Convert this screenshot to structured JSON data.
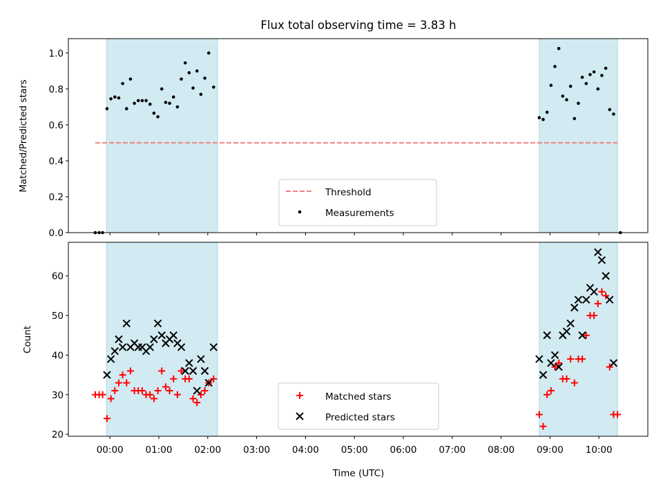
{
  "chart_data": {
    "type": "scatter",
    "title": "Flux total observing time = 3.83 h",
    "xlabel": "Time (UTC)",
    "x_unit": "hours since 00:00 UTC",
    "xlim": [
      -0.85,
      11.0
    ],
    "x_ticks": [
      {
        "value": 0,
        "label": "00:00"
      },
      {
        "value": 1,
        "label": "01:00"
      },
      {
        "value": 2,
        "label": "02:00"
      },
      {
        "value": 3,
        "label": "03:00"
      },
      {
        "value": 4,
        "label": "04:00"
      },
      {
        "value": 5,
        "label": "05:00"
      },
      {
        "value": 6,
        "label": "06:00"
      },
      {
        "value": 7,
        "label": "07:00"
      },
      {
        "value": 8,
        "label": "08:00"
      },
      {
        "value": 9,
        "label": "09:00"
      },
      {
        "value": 10,
        "label": "10:00"
      }
    ],
    "shaded_intervals": [
      [
        -0.07,
        2.2
      ],
      [
        8.78,
        10.38
      ]
    ],
    "panels": [
      {
        "id": "ratio",
        "ylabel": "Matched/Predicted stars",
        "ylim": [
          0,
          1.08
        ],
        "y_ticks": [
          0.0,
          0.2,
          0.4,
          0.6,
          0.8,
          1.0
        ],
        "y_tick_labels": [
          "0.0",
          "0.2",
          "0.4",
          "0.6",
          "0.8",
          "1.0"
        ],
        "threshold": {
          "name": "Threshold",
          "value": 0.5,
          "x_range": [
            -0.3,
            10.38
          ],
          "color": "#f08080"
        },
        "series": [
          {
            "name": "Measurements",
            "marker": "dot",
            "color": "#000000",
            "points": [
              [
                -0.3,
                0.0
              ],
              [
                -0.22,
                0.0
              ],
              [
                -0.15,
                0.0
              ],
              [
                -0.06,
                0.69
              ],
              [
                0.02,
                0.745
              ],
              [
                0.1,
                0.755
              ],
              [
                0.18,
                0.75
              ],
              [
                0.26,
                0.83
              ],
              [
                0.34,
                0.69
              ],
              [
                0.42,
                0.855
              ],
              [
                0.5,
                0.72
              ],
              [
                0.58,
                0.735
              ],
              [
                0.66,
                0.735
              ],
              [
                0.74,
                0.735
              ],
              [
                0.82,
                0.715
              ],
              [
                0.9,
                0.665
              ],
              [
                0.98,
                0.645
              ],
              [
                1.06,
                0.8
              ],
              [
                1.14,
                0.725
              ],
              [
                1.22,
                0.72
              ],
              [
                1.3,
                0.755
              ],
              [
                1.38,
                0.7
              ],
              [
                1.46,
                0.855
              ],
              [
                1.54,
                0.945
              ],
              [
                1.62,
                0.89
              ],
              [
                1.7,
                0.805
              ],
              [
                1.78,
                0.9
              ],
              [
                1.86,
                0.77
              ],
              [
                1.94,
                0.86
              ],
              [
                2.02,
                1.0
              ],
              [
                2.12,
                0.81
              ],
              [
                8.78,
                0.64
              ],
              [
                8.86,
                0.63
              ],
              [
                8.94,
                0.67
              ],
              [
                9.02,
                0.82
              ],
              [
                9.1,
                0.925
              ],
              [
                9.18,
                1.025
              ],
              [
                9.26,
                0.76
              ],
              [
                9.34,
                0.74
              ],
              [
                9.42,
                0.815
              ],
              [
                9.5,
                0.635
              ],
              [
                9.58,
                0.72
              ],
              [
                9.66,
                0.865
              ],
              [
                9.74,
                0.83
              ],
              [
                9.82,
                0.88
              ],
              [
                9.9,
                0.895
              ],
              [
                9.98,
                0.8
              ],
              [
                10.06,
                0.875
              ],
              [
                10.14,
                0.915
              ],
              [
                10.22,
                0.685
              ],
              [
                10.3,
                0.66
              ],
              [
                10.44,
                0.0
              ]
            ]
          }
        ],
        "legend": {
          "position": "lower-center",
          "entries": [
            "Threshold",
            "Measurements"
          ]
        }
      },
      {
        "id": "count",
        "ylabel": "Count",
        "ylim": [
          19.5,
          68.5
        ],
        "y_ticks": [
          20,
          30,
          40,
          50,
          60
        ],
        "y_tick_labels": [
          "20",
          "30",
          "40",
          "50",
          "60"
        ],
        "series": [
          {
            "name": "Matched stars",
            "marker": "plus",
            "color": "#ff0000",
            "points": [
              [
                -0.3,
                30
              ],
              [
                -0.22,
                30
              ],
              [
                -0.15,
                30
              ],
              [
                -0.06,
                24
              ],
              [
                0.02,
                29
              ],
              [
                0.1,
                31
              ],
              [
                0.18,
                33
              ],
              [
                0.26,
                35
              ],
              [
                0.34,
                33
              ],
              [
                0.42,
                36
              ],
              [
                0.5,
                31
              ],
              [
                0.58,
                31
              ],
              [
                0.66,
                31
              ],
              [
                0.74,
                30
              ],
              [
                0.82,
                30
              ],
              [
                0.9,
                29
              ],
              [
                0.98,
                31
              ],
              [
                1.06,
                36
              ],
              [
                1.14,
                32
              ],
              [
                1.22,
                31
              ],
              [
                1.3,
                34
              ],
              [
                1.38,
                30
              ],
              [
                1.46,
                36
              ],
              [
                1.54,
                34
              ],
              [
                1.62,
                34
              ],
              [
                1.7,
                29
              ],
              [
                1.78,
                28
              ],
              [
                1.86,
                30
              ],
              [
                1.94,
                31
              ],
              [
                2.02,
                33
              ],
              [
                2.12,
                34
              ],
              [
                8.78,
                25
              ],
              [
                8.86,
                22
              ],
              [
                8.94,
                30
              ],
              [
                9.02,
                31
              ],
              [
                9.1,
                37
              ],
              [
                9.18,
                38
              ],
              [
                9.26,
                34
              ],
              [
                9.34,
                34
              ],
              [
                9.42,
                39
              ],
              [
                9.5,
                33
              ],
              [
                9.58,
                39
              ],
              [
                9.66,
                39
              ],
              [
                9.74,
                45
              ],
              [
                9.82,
                50
              ],
              [
                9.9,
                50
              ],
              [
                9.98,
                53
              ],
              [
                10.06,
                56
              ],
              [
                10.14,
                55
              ],
              [
                10.22,
                37
              ],
              [
                10.3,
                25
              ],
              [
                10.38,
                25
              ]
            ]
          },
          {
            "name": "Predicted stars",
            "marker": "x",
            "color": "#000000",
            "points": [
              [
                -0.06,
                35
              ],
              [
                0.02,
                39
              ],
              [
                0.1,
                41
              ],
              [
                0.18,
                44
              ],
              [
                0.26,
                42
              ],
              [
                0.34,
                48
              ],
              [
                0.42,
                42
              ],
              [
                0.5,
                43
              ],
              [
                0.58,
                42
              ],
              [
                0.66,
                42
              ],
              [
                0.74,
                41
              ],
              [
                0.82,
                42
              ],
              [
                0.9,
                44
              ],
              [
                0.98,
                48
              ],
              [
                1.06,
                45
              ],
              [
                1.14,
                43
              ],
              [
                1.22,
                44
              ],
              [
                1.3,
                45
              ],
              [
                1.38,
                43
              ],
              [
                1.46,
                42
              ],
              [
                1.54,
                36
              ],
              [
                1.62,
                38
              ],
              [
                1.7,
                36
              ],
              [
                1.78,
                31
              ],
              [
                1.86,
                39
              ],
              [
                1.94,
                36
              ],
              [
                2.02,
                33
              ],
              [
                2.12,
                42
              ],
              [
                8.78,
                39
              ],
              [
                8.86,
                35
              ],
              [
                8.94,
                45
              ],
              [
                9.02,
                38
              ],
              [
                9.1,
                40
              ],
              [
                9.18,
                37
              ],
              [
                9.26,
                45
              ],
              [
                9.34,
                46
              ],
              [
                9.42,
                48
              ],
              [
                9.5,
                52
              ],
              [
                9.58,
                54
              ],
              [
                9.66,
                45
              ],
              [
                9.74,
                54
              ],
              [
                9.82,
                57
              ],
              [
                9.9,
                56
              ],
              [
                9.98,
                66
              ],
              [
                10.06,
                64
              ],
              [
                10.14,
                60
              ],
              [
                10.22,
                54
              ],
              [
                10.3,
                38
              ]
            ]
          }
        ],
        "legend": {
          "position": "lower-center",
          "entries": [
            "Matched stars",
            "Predicted stars"
          ]
        }
      }
    ]
  },
  "colors": {
    "shade": "#add8e6",
    "threshold": "#f08080",
    "matched": "#ff0000",
    "predicted": "#000000",
    "dots": "#000000"
  }
}
